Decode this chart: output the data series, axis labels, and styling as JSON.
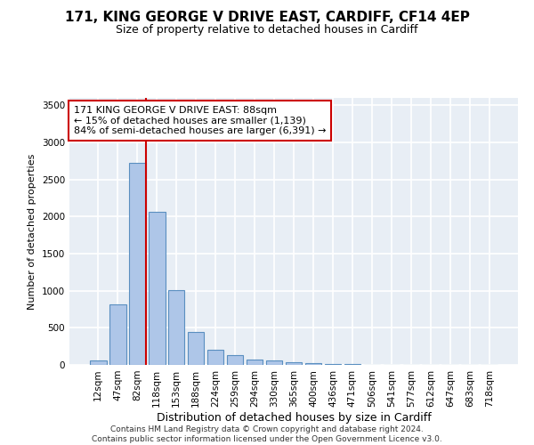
{
  "title1": "171, KING GEORGE V DRIVE EAST, CARDIFF, CF14 4EP",
  "title2": "Size of property relative to detached houses in Cardiff",
  "xlabel": "Distribution of detached houses by size in Cardiff",
  "ylabel": "Number of detached properties",
  "categories": [
    "12sqm",
    "47sqm",
    "82sqm",
    "118sqm",
    "153sqm",
    "188sqm",
    "224sqm",
    "259sqm",
    "294sqm",
    "330sqm",
    "365sqm",
    "400sqm",
    "436sqm",
    "471sqm",
    "506sqm",
    "541sqm",
    "577sqm",
    "612sqm",
    "647sqm",
    "683sqm",
    "718sqm"
  ],
  "values": [
    55,
    820,
    2720,
    2060,
    1010,
    450,
    210,
    130,
    70,
    55,
    40,
    30,
    15,
    8,
    5,
    3,
    2,
    1,
    1,
    1,
    1
  ],
  "bar_color": "#aec6e8",
  "bar_edge_color": "#5a8fc0",
  "vline_index": 2,
  "vline_color": "#cc0000",
  "annotation_text": "171 KING GEORGE V DRIVE EAST: 88sqm\n← 15% of detached houses are smaller (1,139)\n84% of semi-detached houses are larger (6,391) →",
  "annotation_box_color": "#ffffff",
  "annotation_box_edge_color": "#cc0000",
  "ylim": [
    0,
    3600
  ],
  "yticks": [
    0,
    500,
    1000,
    1500,
    2000,
    2500,
    3000,
    3500
  ],
  "background_color": "#e8eef5",
  "grid_color": "#ffffff",
  "footer": "Contains HM Land Registry data © Crown copyright and database right 2024.\nContains public sector information licensed under the Open Government Licence v3.0.",
  "title1_fontsize": 11,
  "title2_fontsize": 9,
  "xlabel_fontsize": 9,
  "ylabel_fontsize": 8,
  "annotation_fontsize": 8,
  "footer_fontsize": 6.5,
  "tick_fontsize": 7.5
}
